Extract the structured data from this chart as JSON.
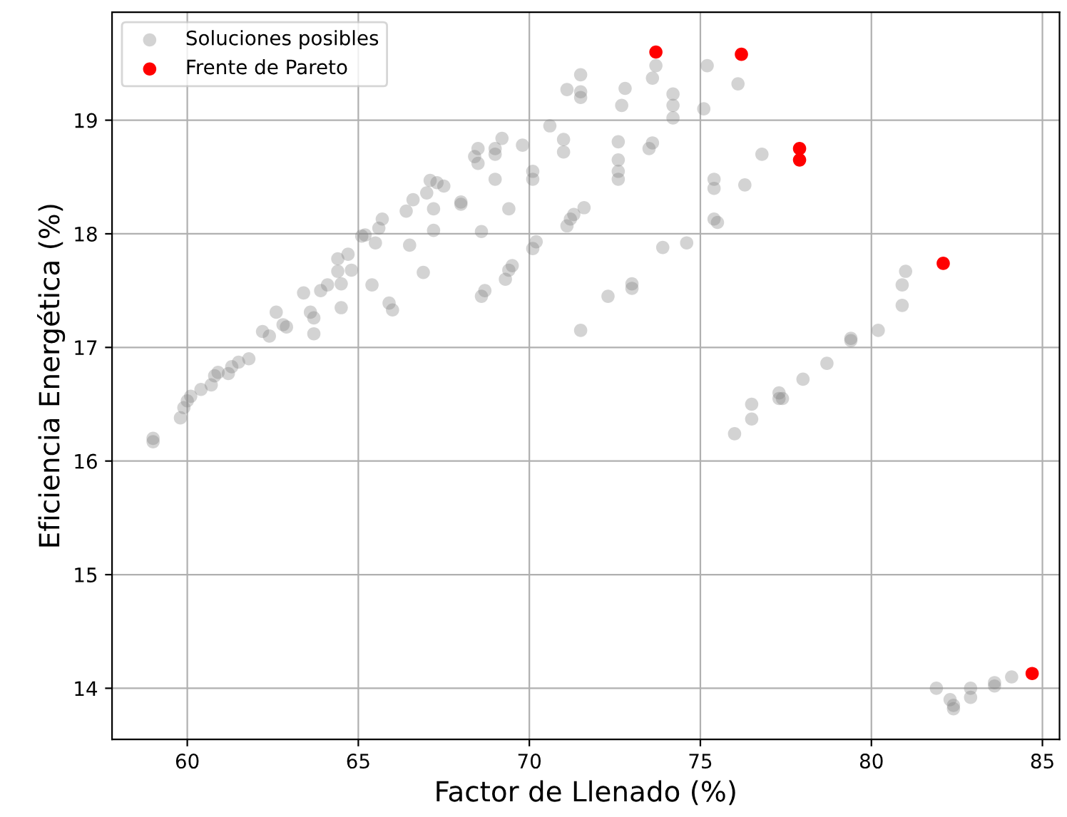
{
  "chart_data": {
    "type": "scatter",
    "xlabel": "Factor de Llenado (%)",
    "ylabel": "Eficiencia Energética (%)",
    "xlim": [
      57.8,
      85.5
    ],
    "ylim": [
      13.55,
      19.95
    ],
    "xticks": [
      60,
      65,
      70,
      75,
      80,
      85
    ],
    "yticks": [
      14,
      15,
      16,
      17,
      18,
      19
    ],
    "grid": true,
    "legend": "top left",
    "marker": "circle",
    "series": [
      {
        "name": "Soluciones posibles",
        "color": "#808080",
        "x": [
          59.0,
          59.0,
          59.8,
          59.9,
          60.0,
          60.1,
          60.4,
          60.7,
          60.8,
          60.9,
          61.2,
          61.3,
          61.5,
          61.8,
          62.2,
          62.4,
          62.6,
          62.8,
          62.9,
          63.4,
          63.6,
          63.7,
          63.7,
          63.9,
          64.1,
          64.4,
          64.4,
          64.5,
          64.5,
          64.7,
          64.8,
          65.1,
          65.2,
          65.4,
          65.5,
          65.6,
          65.7,
          65.9,
          66.0,
          66.4,
          66.5,
          66.6,
          66.9,
          67.0,
          67.1,
          67.2,
          67.2,
          67.3,
          67.5,
          68.0,
          68.0,
          68.4,
          68.5,
          68.5,
          68.6,
          68.6,
          68.7,
          69.0,
          69.0,
          69.0,
          69.2,
          69.4,
          69.3,
          69.4,
          69.5,
          69.8,
          70.1,
          70.1,
          70.1,
          70.2,
          70.6,
          71.0,
          71.0,
          71.1,
          71.2,
          71.3,
          71.6,
          71.1,
          71.5,
          71.5,
          71.5,
          71.5,
          72.3,
          72.6,
          72.6,
          72.6,
          72.6,
          72.7,
          72.8,
          73.0,
          73.0,
          73.5,
          73.6,
          73.6,
          73.7,
          73.9,
          74.2,
          74.2,
          74.2,
          74.6,
          75.1,
          75.2,
          75.4,
          75.4,
          75.4,
          75.5,
          76.1,
          76.3,
          76.8,
          76.0,
          76.5,
          76.5,
          77.3,
          77.3,
          77.4,
          78.0,
          78.7,
          79.4,
          79.4,
          80.2,
          80.9,
          80.9,
          81.0,
          81.9,
          82.3,
          82.4,
          82.4,
          82.9,
          82.9,
          83.6,
          83.6,
          84.1
        ],
        "values": [
          16.2,
          16.17,
          16.38,
          16.47,
          16.53,
          16.57,
          16.63,
          16.67,
          16.75,
          16.78,
          16.77,
          16.83,
          16.87,
          16.9,
          17.14,
          17.1,
          17.31,
          17.2,
          17.18,
          17.48,
          17.31,
          17.26,
          17.12,
          17.5,
          17.55,
          17.67,
          17.78,
          17.56,
          17.35,
          17.82,
          17.68,
          17.98,
          17.99,
          17.55,
          17.92,
          18.05,
          18.13,
          17.39,
          17.33,
          18.2,
          17.9,
          18.3,
          17.66,
          18.36,
          18.47,
          18.22,
          18.03,
          18.45,
          18.42,
          18.28,
          18.26,
          18.68,
          18.75,
          18.62,
          18.02,
          17.45,
          17.5,
          18.75,
          18.7,
          18.48,
          18.84,
          18.22,
          17.6,
          17.68,
          17.72,
          18.78,
          18.55,
          18.48,
          17.87,
          17.93,
          18.95,
          18.83,
          18.72,
          18.07,
          18.13,
          18.17,
          18.23,
          19.27,
          19.4,
          19.25,
          19.2,
          17.15,
          17.45,
          18.81,
          18.65,
          18.55,
          18.48,
          19.13,
          19.28,
          17.52,
          17.56,
          18.75,
          18.8,
          19.37,
          19.48,
          17.88,
          19.23,
          19.13,
          19.02,
          17.92,
          19.1,
          19.48,
          18.48,
          18.4,
          18.13,
          18.1,
          19.32,
          18.43,
          18.7,
          16.24,
          16.5,
          16.37,
          16.6,
          16.55,
          16.55,
          16.72,
          16.86,
          17.08,
          17.06,
          17.15,
          17.37,
          17.55,
          17.67,
          14.0,
          13.9,
          13.82,
          13.85,
          14.0,
          13.92,
          14.05,
          14.02,
          14.1
        ]
      },
      {
        "name": "Frente de Pareto",
        "color": "#ff0000",
        "x": [
          73.7,
          76.2,
          77.9,
          77.9,
          82.1,
          84.7
        ],
        "values": [
          19.6,
          19.58,
          18.75,
          18.65,
          17.74,
          14.13
        ]
      }
    ]
  }
}
